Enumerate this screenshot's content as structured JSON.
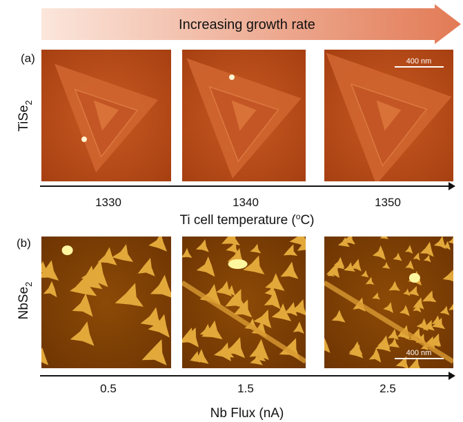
{
  "header": {
    "arrow_label": "Increasing growth rate"
  },
  "panels": [
    {
      "label": "(a)",
      "material": {
        "base": "TiSe",
        "sub": "2"
      },
      "scale_bar": "400 nm",
      "ticks": [
        "1330",
        "1340",
        "1350"
      ],
      "axis_label": {
        "before": "Ti cell temperature (",
        "sup": "o",
        "after": "C)"
      }
    },
    {
      "label": "(b)",
      "material": {
        "base": "NbSe",
        "sub": "2"
      },
      "scale_bar": "400 nm",
      "ticks": [
        "0.5",
        "1.5",
        "2.5"
      ],
      "axis_label": {
        "before": "Nb Flux (nA)"
      }
    }
  ]
}
